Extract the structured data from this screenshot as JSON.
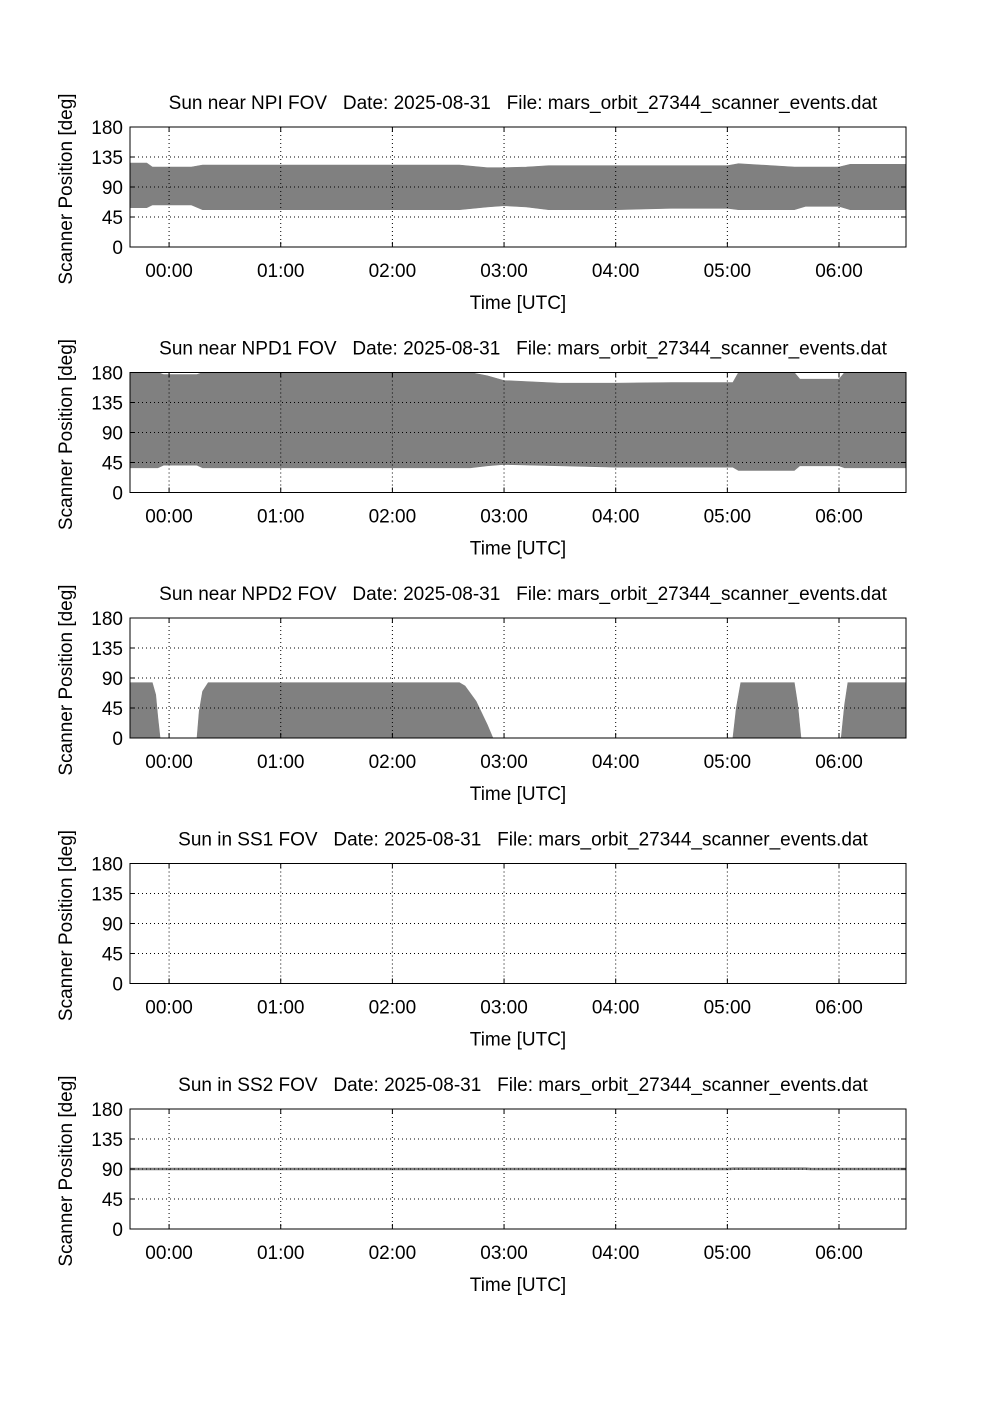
{
  "chart_data": [
    {
      "type": "area",
      "title": "Sun near NPI FOV   Date: 2025-08-31   File: mars_orbit_27344_scanner_events.dat",
      "xlabel": "Time [UTC]",
      "ylabel": "Scanner Position [deg]",
      "x_ticks": [
        "00:00",
        "01:00",
        "02:00",
        "03:00",
        "04:00",
        "05:00",
        "06:00"
      ],
      "y_ticks": [
        "0",
        "45",
        "90",
        "135",
        "180"
      ],
      "xlim": [
        -0.35,
        6.6
      ],
      "ylim": [
        0,
        180
      ],
      "grid": true,
      "fill_color": "#808080",
      "series": [
        {
          "x": [
            -0.35,
            -0.2,
            -0.15,
            0.2,
            0.3,
            0.6,
            1.5,
            2.6,
            2.85,
            3.0,
            3.2,
            3.4,
            4.0,
            4.5,
            5.0,
            5.1,
            5.6,
            5.7,
            6.0,
            6.1,
            6.6
          ],
          "upper": [
            126,
            126,
            120,
            120,
            123,
            123,
            123,
            123,
            119,
            119,
            120,
            122,
            122,
            122,
            122,
            125,
            120,
            120,
            120,
            124,
            124
          ],
          "lower": [
            59,
            59,
            63,
            63,
            56,
            56,
            56,
            56,
            60,
            62,
            60,
            56,
            56,
            58,
            58,
            56,
            56,
            61,
            61,
            56,
            56
          ]
        }
      ]
    },
    {
      "type": "area",
      "title": "Sun near NPD1 FOV   Date: 2025-08-31   File: mars_orbit_27344_scanner_events.dat",
      "xlabel": "Time [UTC]",
      "ylabel": "Scanner Position [deg]",
      "x_ticks": [
        "00:00",
        "01:00",
        "02:00",
        "03:00",
        "04:00",
        "05:00",
        "06:00"
      ],
      "y_ticks": [
        "0",
        "45",
        "90",
        "135",
        "180"
      ],
      "xlim": [
        -0.35,
        6.6
      ],
      "ylim": [
        0,
        180
      ],
      "grid": true,
      "fill_color": "#808080",
      "series": [
        {
          "x": [
            -0.35,
            -0.1,
            -0.05,
            0.25,
            0.3,
            2.7,
            2.85,
            3.0,
            3.5,
            4.0,
            4.5,
            5.05,
            5.1,
            5.6,
            5.65,
            6.0,
            6.05,
            6.6
          ],
          "upper": [
            180,
            180,
            177,
            177,
            180,
            180,
            175,
            168,
            164,
            164,
            165,
            165,
            180,
            180,
            170,
            170,
            180,
            180
          ],
          "lower": [
            37,
            37,
            41,
            41,
            37,
            37,
            40,
            42,
            40,
            38,
            38,
            38,
            33,
            33,
            40,
            40,
            37,
            37
          ]
        }
      ]
    },
    {
      "type": "area",
      "title": "Sun near NPD2 FOV   Date: 2025-08-31   File: mars_orbit_27344_scanner_events.dat",
      "xlabel": "Time [UTC]",
      "ylabel": "Scanner Position [deg]",
      "x_ticks": [
        "00:00",
        "01:00",
        "02:00",
        "03:00",
        "04:00",
        "05:00",
        "06:00"
      ],
      "y_ticks": [
        "0",
        "45",
        "90",
        "135",
        "180"
      ],
      "xlim": [
        -0.35,
        6.6
      ],
      "ylim": [
        0,
        180
      ],
      "grid": true,
      "fill_color": "#808080",
      "series": [
        {
          "x": [
            -0.35,
            -0.15,
            -0.12,
            -0.1,
            -0.08,
            0.25,
            0.27,
            0.3,
            0.35,
            2.6,
            2.65,
            2.75,
            2.85,
            2.9,
            5.05,
            5.08,
            5.12,
            5.6,
            5.63,
            5.66,
            6.02,
            6.05,
            6.08,
            6.6
          ],
          "upper": [
            83,
            83,
            65,
            30,
            0,
            0,
            40,
            70,
            83,
            83,
            78,
            55,
            20,
            0,
            0,
            45,
            83,
            83,
            50,
            0,
            0,
            50,
            83,
            83
          ],
          "lower": [
            0,
            0,
            0,
            0,
            0,
            0,
            0,
            0,
            0,
            0,
            0,
            0,
            0,
            0,
            0,
            0,
            0,
            0,
            0,
            0,
            0,
            0,
            0,
            0
          ]
        }
      ]
    },
    {
      "type": "area",
      "title": "Sun in SS1 FOV   Date: 2025-08-31   File: mars_orbit_27344_scanner_events.dat",
      "xlabel": "Time [UTC]",
      "ylabel": "Scanner Position [deg]",
      "x_ticks": [
        "00:00",
        "01:00",
        "02:00",
        "03:00",
        "04:00",
        "05:00",
        "06:00"
      ],
      "y_ticks": [
        "0",
        "45",
        "90",
        "135",
        "180"
      ],
      "xlim": [
        -0.35,
        6.6
      ],
      "ylim": [
        0,
        180
      ],
      "grid": true,
      "fill_color": "#808080",
      "series": []
    },
    {
      "type": "area",
      "title": "Sun in SS2 FOV   Date: 2025-08-31   File: mars_orbit_27344_scanner_events.dat",
      "xlabel": "Time [UTC]",
      "ylabel": "Scanner Position [deg]",
      "x_ticks": [
        "00:00",
        "01:00",
        "02:00",
        "03:00",
        "04:00",
        "05:00",
        "06:00"
      ],
      "y_ticks": [
        "0",
        "45",
        "90",
        "135",
        "180"
      ],
      "xlim": [
        -0.35,
        6.6
      ],
      "ylim": [
        0,
        180
      ],
      "grid": true,
      "fill_color": "#808080",
      "series": [
        {
          "x": [
            -0.35,
            5.0,
            5.05,
            5.7,
            5.75,
            6.6
          ],
          "upper": [
            91.5,
            91.5,
            92,
            92,
            91.5,
            91.5
          ],
          "lower": [
            88.5,
            88.5,
            89,
            89,
            88.5,
            88.5
          ]
        }
      ]
    }
  ]
}
